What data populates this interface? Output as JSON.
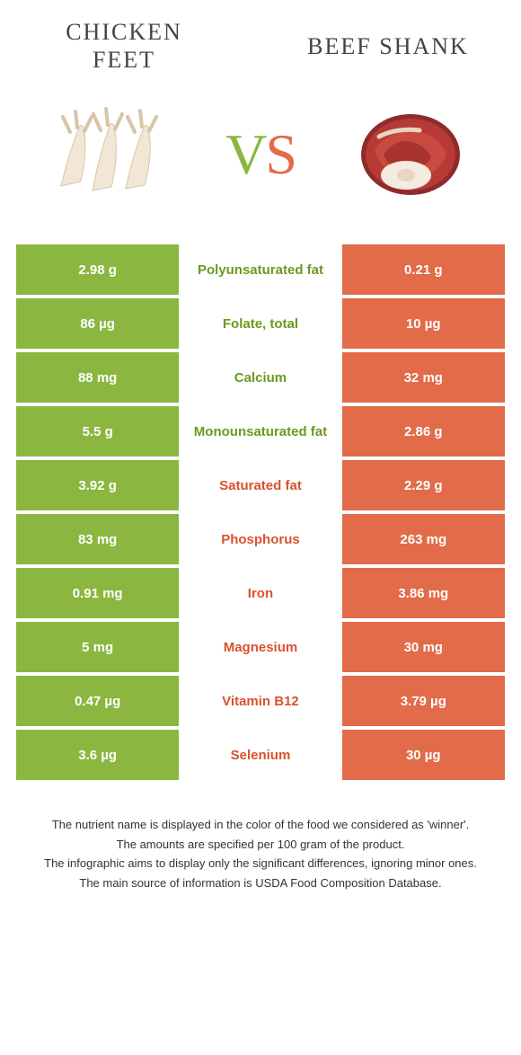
{
  "colors": {
    "green": "#8bb640",
    "orange": "#e26b4a",
    "mid_green_text": "#6a9a1e",
    "mid_orange_text": "#d9522d",
    "background": "#ffffff",
    "title_text": "#444444"
  },
  "header": {
    "left_title": "Chicken feet",
    "right_title": "Beef shank",
    "vs_v": "V",
    "vs_s": "S"
  },
  "rows": [
    {
      "left": "2.98 g",
      "label": "Polyunsaturated fat",
      "right": "0.21 g",
      "winner": "green"
    },
    {
      "left": "86 µg",
      "label": "Folate, total",
      "right": "10 µg",
      "winner": "green"
    },
    {
      "left": "88 mg",
      "label": "Calcium",
      "right": "32 mg",
      "winner": "green"
    },
    {
      "left": "5.5 g",
      "label": "Monounsaturated fat",
      "right": "2.86 g",
      "winner": "green"
    },
    {
      "left": "3.92 g",
      "label": "Saturated fat",
      "right": "2.29 g",
      "winner": "orange"
    },
    {
      "left": "83 mg",
      "label": "Phosphorus",
      "right": "263 mg",
      "winner": "orange"
    },
    {
      "left": "0.91 mg",
      "label": "Iron",
      "right": "3.86 mg",
      "winner": "orange"
    },
    {
      "left": "5 mg",
      "label": "Magnesium",
      "right": "30 mg",
      "winner": "orange"
    },
    {
      "left": "0.47 µg",
      "label": "Vitamin B12",
      "right": "3.79 µg",
      "winner": "orange"
    },
    {
      "left": "3.6 µg",
      "label": "Selenium",
      "right": "30 µg",
      "winner": "orange"
    }
  ],
  "footer": {
    "line1": "The nutrient name is displayed in the color of the food we considered as 'winner'.",
    "line2": "The amounts are specified per 100 gram of the product.",
    "line3": "The infographic aims to display only the significant differences, ignoring minor ones.",
    "line4": "The main source of information is USDA Food Composition Database."
  }
}
